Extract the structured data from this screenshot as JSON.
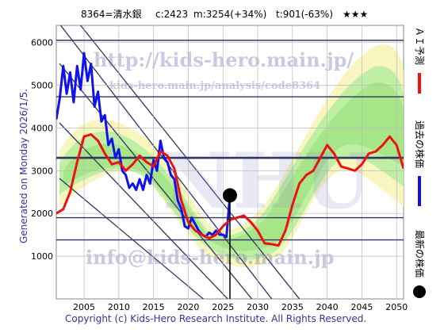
{
  "header": {
    "code_name": "8364=清水銀",
    "current": "c:2423",
    "max": "m:3254(+34%)",
    "trough": "t:901(-63%)",
    "stars": "★★★"
  },
  "side_label": "Generated on Monday 2026/1/5.",
  "footer": "Copyright (c) Kids-Hero Research Institute. All Rights Reserved.",
  "watermarks": {
    "top": "http://kids-hero.main.jp/",
    "middle": "kids-hero.main.jp/analysis/code8364",
    "bottom": "info@kids-hero.main.jp"
  },
  "legend": [
    {
      "label": "ＡＩ予測",
      "color": "#ee1111"
    },
    {
      "label": "過去の株価",
      "color": "#1111ee"
    },
    {
      "label": "最新の株価",
      "color": "#000000"
    }
  ],
  "chart_data": {
    "type": "line",
    "xlim": [
      2001,
      2051
    ],
    "ylim": [
      0,
      6400
    ],
    "x_ticks": [
      2005,
      2010,
      2015,
      2020,
      2025,
      2030,
      2035,
      2040,
      2045,
      2050
    ],
    "y_ticks": [
      1000,
      2000,
      3000,
      4000,
      5000,
      6000
    ],
    "grid": true,
    "horizontal_levels": [
      6050,
      4730,
      3300,
      1900,
      1380
    ],
    "latest_point": {
      "x": 2026.0,
      "y": 2423
    },
    "series": [
      {
        "name": "過去の株価",
        "color": "#1111ee",
        "x": [
          2001.0,
          2001.5,
          2002.0,
          2002.5,
          2003.0,
          2003.5,
          2004.0,
          2004.5,
          2005.0,
          2005.5,
          2006.0,
          2006.5,
          2007.0,
          2007.5,
          2008.0,
          2008.5,
          2009.0,
          2009.5,
          2010.0,
          2010.5,
          2011.0,
          2011.5,
          2012.0,
          2012.5,
          2013.0,
          2013.5,
          2014.0,
          2014.5,
          2015.0,
          2015.5,
          2016.0,
          2016.5,
          2017.0,
          2017.5,
          2018.0,
          2018.5,
          2019.0,
          2019.5,
          2020.0,
          2020.5,
          2021.0,
          2021.5,
          2022.0,
          2022.5,
          2023.0,
          2023.5,
          2024.0,
          2024.5,
          2025.0,
          2025.5,
          2026.0
        ],
        "values": [
          4200,
          4700,
          5450,
          4800,
          5300,
          4600,
          5450,
          4900,
          5750,
          5100,
          5500,
          4500,
          4850,
          4150,
          4300,
          3600,
          3750,
          3300,
          3500,
          3000,
          2900,
          2600,
          2700,
          2550,
          2800,
          2550,
          2900,
          2700,
          3250,
          3000,
          3700,
          3300,
          3200,
          2900,
          2800,
          2300,
          2100,
          1700,
          1650,
          1900,
          1750,
          1600,
          1500,
          1450,
          1550,
          1500,
          1600,
          1500,
          1500,
          1450,
          2423
        ]
      },
      {
        "name": "ＡＩ予測",
        "color": "#ee1111",
        "x": [
          2001.0,
          2002.0,
          2003.0,
          2004.0,
          2005.0,
          2006.0,
          2007.0,
          2008.0,
          2009.0,
          2010.0,
          2011.0,
          2012.0,
          2013.0,
          2014.0,
          2015.0,
          2016.0,
          2017.0,
          2018.0,
          2019.0,
          2020.0,
          2021.0,
          2022.0,
          2023.0,
          2024.0,
          2025.0,
          2026.0,
          2027.0,
          2028.0,
          2029.0,
          2030.0,
          2031.0,
          2032.0,
          2033.0,
          2034.0,
          2035.0,
          2036.0,
          2037.0,
          2038.0,
          2039.0,
          2040.0,
          2041.0,
          2042.0,
          2043.0,
          2044.0,
          2045.0,
          2046.0,
          2047.0,
          2048.0,
          2049.0,
          2050.0,
          2051.0
        ],
        "values": [
          2000,
          2100,
          2500,
          3200,
          3800,
          3850,
          3700,
          3400,
          3150,
          3200,
          3000,
          3150,
          3350,
          3200,
          3100,
          3450,
          3350,
          3050,
          2300,
          1800,
          1600,
          1500,
          1420,
          1500,
          1700,
          1850,
          1900,
          1950,
          1800,
          1600,
          1300,
          1280,
          1250,
          1600,
          2200,
          2700,
          2900,
          3000,
          3300,
          3600,
          3400,
          3100,
          3050,
          3000,
          3150,
          3400,
          3450,
          3600,
          3800,
          3600,
          3050
        ]
      }
    ]
  }
}
